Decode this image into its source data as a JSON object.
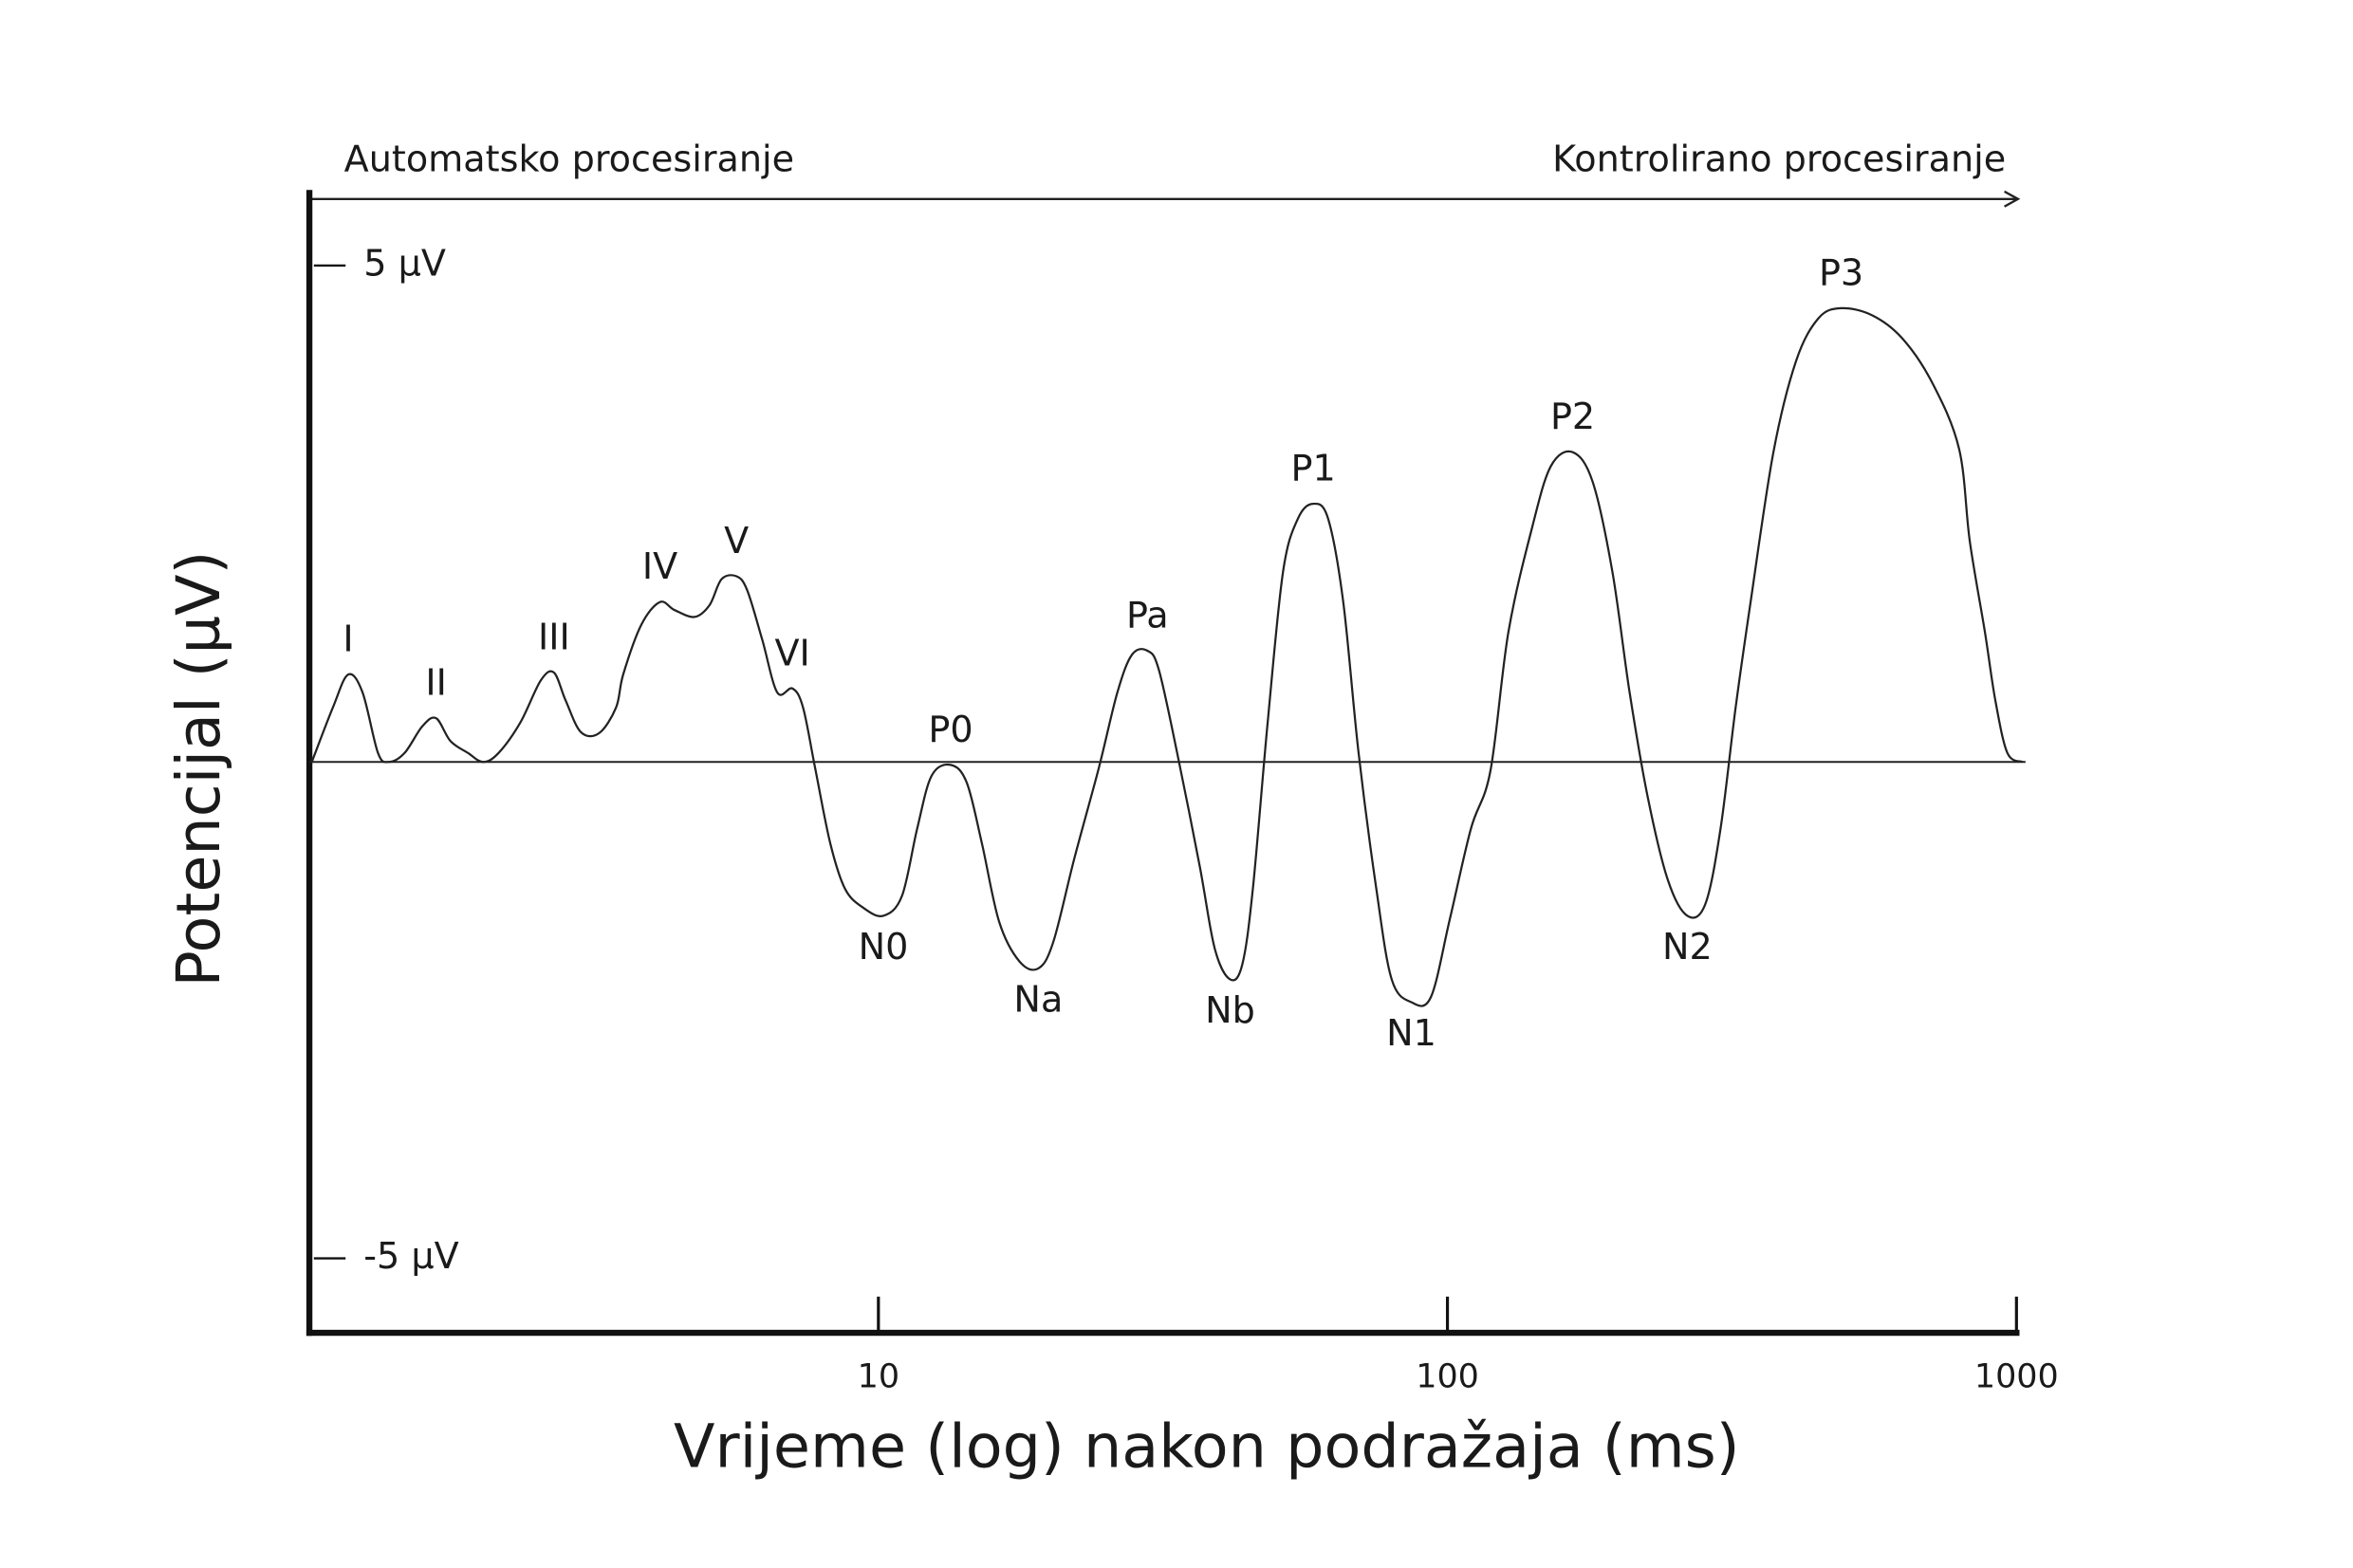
{
  "chart_data": {
    "type": "line",
    "top_left_label": "Automatsko procesiranje",
    "top_right_label": "Kontrolirano procesiranje",
    "x_label": "Vrijeme (log) nakon podražaja (ms)",
    "y_label": "Potencijal (µV)",
    "log_x": true,
    "xlim": [
      1,
      1000
    ],
    "xticks": [
      10,
      100,
      1000
    ],
    "ylim": [
      -5.75,
      5.7
    ],
    "yticks": [
      {
        "value": 5,
        "label": "5 µV"
      },
      {
        "value": -5,
        "label": "-5 µV"
      }
    ],
    "color": "#222222",
    "x": [
      1.01,
      1.1,
      1.17,
      1.24,
      1.32,
      1.38,
      1.47,
      1.58,
      1.67,
      1.77,
      1.9,
      2.02,
      2.15,
      2.35,
      2.55,
      2.69,
      2.82,
      3.0,
      3.23,
      3.46,
      3.56,
      3.83,
      4.13,
      4.38,
      4.75,
      5.05,
      5.3,
      5.63,
      5.88,
      6.25,
      6.64,
      7.06,
      7.37,
      7.74,
      8.23,
      8.74,
      9.41,
      10.2,
      11.0,
      11.7,
      12.4,
      13.4,
      14.3,
      15.2,
      16.3,
      17.7,
      19.1,
      20.3,
      22.1,
      24.4,
      26.3,
      27.9,
      29.7,
      31.1,
      33.5,
      36.7,
      39.0,
      41.5,
      43.6,
      45.5,
      48.3,
      51.4,
      54.6,
      58.1,
      61.7,
      65.6,
      69.8,
      75.0,
      79.8,
      86.4,
      93.5,
      101,
      110,
      119,
      128,
      141,
      152,
      166,
      180,
      195,
      209,
      225,
      244,
      264,
      284,
      302,
      321,
      341,
      374,
      410,
      449,
      492,
      557,
      629,
      711,
      793,
      828,
      880,
      918,
      964,
      1025
    ],
    "values": [
      0,
      0.55,
      0.88,
      0.7,
      0.09,
      0,
      0.09,
      0.36,
      0.44,
      0.21,
      0.09,
      0,
      0.09,
      0.4,
      0.82,
      0.9,
      0.62,
      0.3,
      0.29,
      0.55,
      0.88,
      1.38,
      1.61,
      1.53,
      1.46,
      1.58,
      1.84,
      1.87,
      1.73,
      1.23,
      0.7,
      0.74,
      0.55,
      -0.06,
      -0.82,
      -1.28,
      -1.47,
      -1.55,
      -1.35,
      -0.67,
      -0.14,
      -0.03,
      -0.21,
      -0.82,
      -1.61,
      -2.01,
      -2.08,
      -1.81,
      -0.97,
      -0.06,
      0.7,
      1.08,
      1.12,
      0.93,
      0.09,
      -1.05,
      -1.88,
      -2.19,
      -2.04,
      -1.28,
      0.39,
      1.91,
      2.45,
      2.6,
      2.45,
      1.61,
      0.09,
      -1.28,
      -2.19,
      -2.42,
      -2.37,
      -1.58,
      -0.67,
      -0.09,
      1.31,
      2.37,
      2.98,
      3.12,
      2.82,
      1.91,
      0.7,
      -0.36,
      -1.19,
      -1.55,
      -1.43,
      -0.67,
      0.55,
      1.61,
      3.12,
      4.04,
      4.47,
      4.57,
      4.5,
      4.27,
      3.82,
      3.15,
      2.22,
      1.31,
      0.62,
      0.09,
      0
    ],
    "annotations": [
      {
        "text": "I",
        "x": 1.17,
        "y": 0.88
      },
      {
        "text": "II",
        "x": 1.67,
        "y": 0.44
      },
      {
        "text": "III",
        "x": 2.69,
        "y": 0.9
      },
      {
        "text": "IV",
        "x": 4.13,
        "y": 1.61
      },
      {
        "text": "V",
        "x": 5.63,
        "y": 1.87
      },
      {
        "text": "VI",
        "x": 7.06,
        "y": 0.74
      },
      {
        "text": "N0",
        "x": 10.2,
        "y": -1.55
      },
      {
        "text": "P0",
        "x": 13.4,
        "y": -0.03
      },
      {
        "text": "Na",
        "x": 19.1,
        "y": -2.08
      },
      {
        "text": "Pa",
        "x": 29.7,
        "y": 1.12
      },
      {
        "text": "Nb",
        "x": 41.5,
        "y": -2.19
      },
      {
        "text": "P1",
        "x": 58.1,
        "y": 2.6
      },
      {
        "text": "N1",
        "x": 86.4,
        "y": -2.42
      },
      {
        "text": "P2",
        "x": 166,
        "y": 3.12
      },
      {
        "text": "N2",
        "x": 264,
        "y": -1.55
      },
      {
        "text": "P3",
        "x": 492,
        "y": 4.57
      }
    ]
  }
}
